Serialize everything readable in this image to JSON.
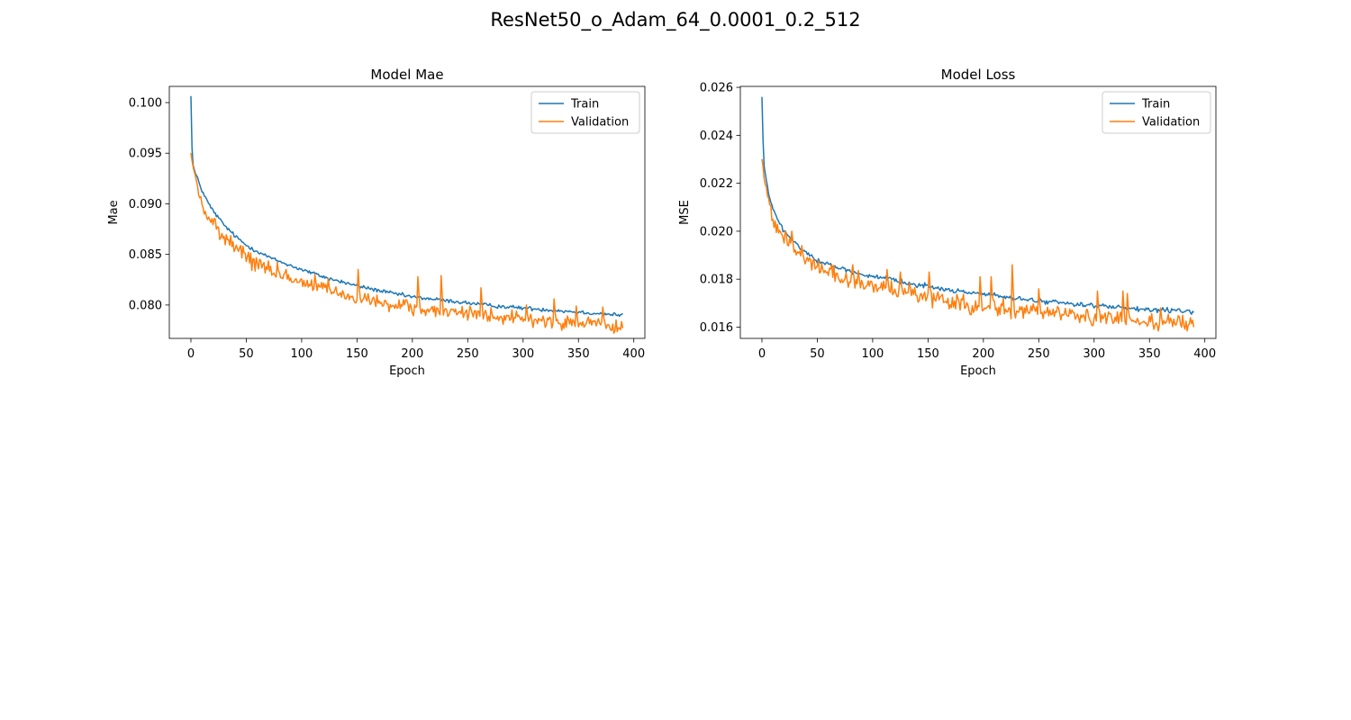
{
  "figure": {
    "suptitle": "ResNet50_o_Adam_64_0.0001_0.2_512"
  },
  "chart_data": [
    {
      "type": "line",
      "title": "Model Mae",
      "xlabel": "Epoch",
      "ylabel": "Mae",
      "xlim": [
        -19.5,
        410
      ],
      "ylim": [
        0.0767,
        0.1016
      ],
      "xticks": [
        0,
        50,
        100,
        150,
        200,
        250,
        300,
        350,
        400
      ],
      "yticks": [
        0.08,
        0.085,
        0.09,
        0.095,
        0.1
      ],
      "ytick_labels": [
        "0.080",
        "0.085",
        "0.090",
        "0.095",
        "0.100"
      ],
      "grid": false,
      "legend": "top-right",
      "epochs": 391,
      "series": [
        {
          "name": "Train",
          "color": "#1f77b4",
          "points": [
            [
              0,
              0.1007
            ],
            [
              1,
              0.0955
            ],
            [
              2,
              0.0938
            ],
            [
              4,
              0.093
            ],
            [
              7,
              0.0922
            ],
            [
              10,
              0.0913
            ],
            [
              15,
              0.0902
            ],
            [
              20,
              0.0893
            ],
            [
              30,
              0.0879
            ],
            [
              40,
              0.0868
            ],
            [
              50,
              0.0859
            ],
            [
              60,
              0.0853
            ],
            [
              75,
              0.0845
            ],
            [
              100,
              0.0835
            ],
            [
              125,
              0.0826
            ],
            [
              150,
              0.0819
            ],
            [
              175,
              0.0813
            ],
            [
              200,
              0.0808
            ],
            [
              225,
              0.0805
            ],
            [
              250,
              0.0802
            ],
            [
              275,
              0.0799
            ],
            [
              300,
              0.0797
            ],
            [
              325,
              0.0795
            ],
            [
              350,
              0.0793
            ],
            [
              375,
              0.0791
            ],
            [
              390,
              0.079
            ]
          ],
          "noise": 0.00012
        },
        {
          "name": "Validation",
          "color": "#ff7f0e",
          "points": [
            [
              0,
              0.095
            ],
            [
              2,
              0.0935
            ],
            [
              4,
              0.0928
            ],
            [
              7,
              0.0912
            ],
            [
              10,
              0.0898
            ],
            [
              15,
              0.0887
            ],
            [
              20,
              0.088
            ],
            [
              30,
              0.0866
            ],
            [
              40,
              0.0856
            ],
            [
              50,
              0.0848
            ],
            [
              60,
              0.084
            ],
            [
              75,
              0.0832
            ],
            [
              100,
              0.0823
            ],
            [
              125,
              0.0813
            ],
            [
              150,
              0.0806
            ],
            [
              175,
              0.08
            ],
            [
              200,
              0.0797
            ],
            [
              225,
              0.0794
            ],
            [
              250,
              0.0791
            ],
            [
              275,
              0.0789
            ],
            [
              300,
              0.0786
            ],
            [
              325,
              0.0784
            ],
            [
              350,
              0.0782
            ],
            [
              375,
              0.078
            ],
            [
              390,
              0.0774
            ]
          ],
          "noise": 0.00045,
          "spikes": [
            [
              47,
              0.0858
            ],
            [
              78,
              0.0842
            ],
            [
              112,
              0.083
            ],
            [
              124,
              0.0826
            ],
            [
              151,
              0.0835
            ],
            [
              205,
              0.0828
            ],
            [
              226,
              0.0829
            ],
            [
              262,
              0.0817
            ],
            [
              303,
              0.08
            ],
            [
              328,
              0.0806
            ],
            [
              348,
              0.0799
            ],
            [
              372,
              0.0798
            ]
          ]
        }
      ]
    },
    {
      "type": "line",
      "title": "Model Loss",
      "xlabel": "Epoch",
      "ylabel": "MSE",
      "xlim": [
        -19.5,
        410
      ],
      "ylim": [
        0.01553,
        0.02604
      ],
      "xticks": [
        0,
        50,
        100,
        150,
        200,
        250,
        300,
        350,
        400
      ],
      "yticks": [
        0.016,
        0.018,
        0.02,
        0.022,
        0.024,
        0.026
      ],
      "ytick_labels": [
        "0.016",
        "0.018",
        "0.020",
        "0.022",
        "0.024",
        "0.026"
      ],
      "grid": false,
      "legend": "top-right",
      "epochs": 391,
      "series": [
        {
          "name": "Train",
          "color": "#1f77b4",
          "points": [
            [
              0,
              0.0256
            ],
            [
              1,
              0.0238
            ],
            [
              2,
              0.0227
            ],
            [
              4,
              0.0221
            ],
            [
              7,
              0.0214
            ],
            [
              10,
              0.0209
            ],
            [
              15,
              0.0204
            ],
            [
              20,
              0.02
            ],
            [
              30,
              0.0195
            ],
            [
              40,
              0.0191
            ],
            [
              50,
              0.0188
            ],
            [
              60,
              0.0186
            ],
            [
              75,
              0.0184
            ],
            [
              100,
              0.0181
            ],
            [
              125,
              0.0179
            ],
            [
              150,
              0.0177
            ],
            [
              175,
              0.0175
            ],
            [
              200,
              0.0174
            ],
            [
              225,
              0.0172
            ],
            [
              250,
              0.0171
            ],
            [
              275,
              0.017
            ],
            [
              300,
              0.0169
            ],
            [
              325,
              0.0168
            ],
            [
              350,
              0.0167
            ],
            [
              375,
              0.0167
            ],
            [
              390,
              0.0166
            ]
          ],
          "noise": 6e-05
        },
        {
          "name": "Validation",
          "color": "#ff7f0e",
          "points": [
            [
              0,
              0.023
            ],
            [
              2,
              0.0222
            ],
            [
              4,
              0.0218
            ],
            [
              7,
              0.021
            ],
            [
              10,
              0.0205
            ],
            [
              15,
              0.0201
            ],
            [
              20,
              0.0197
            ],
            [
              30,
              0.0192
            ],
            [
              40,
              0.0188
            ],
            [
              50,
              0.0185
            ],
            [
              60,
              0.0183
            ],
            [
              75,
              0.018
            ],
            [
              100,
              0.0177
            ],
            [
              125,
              0.0175
            ],
            [
              150,
              0.0172
            ],
            [
              175,
              0.017
            ],
            [
              200,
              0.0168
            ],
            [
              225,
              0.0167
            ],
            [
              250,
              0.0166
            ],
            [
              275,
              0.0165
            ],
            [
              300,
              0.0164
            ],
            [
              325,
              0.0163
            ],
            [
              350,
              0.0162
            ],
            [
              375,
              0.0162
            ],
            [
              390,
              0.0161
            ]
          ],
          "noise": 0.00022,
          "spikes": [
            [
              27,
              0.02
            ],
            [
              36,
              0.0194
            ],
            [
              82,
              0.0186
            ],
            [
              113,
              0.0184
            ],
            [
              125,
              0.0183
            ],
            [
              151,
              0.0183
            ],
            [
              197,
              0.0181
            ],
            [
              207,
              0.0181
            ],
            [
              226,
              0.0186
            ],
            [
              250,
              0.0176
            ],
            [
              303,
              0.0175
            ],
            [
              326,
              0.0175
            ],
            [
              330,
              0.0174
            ],
            [
              360,
              0.0168
            ]
          ]
        }
      ]
    }
  ]
}
